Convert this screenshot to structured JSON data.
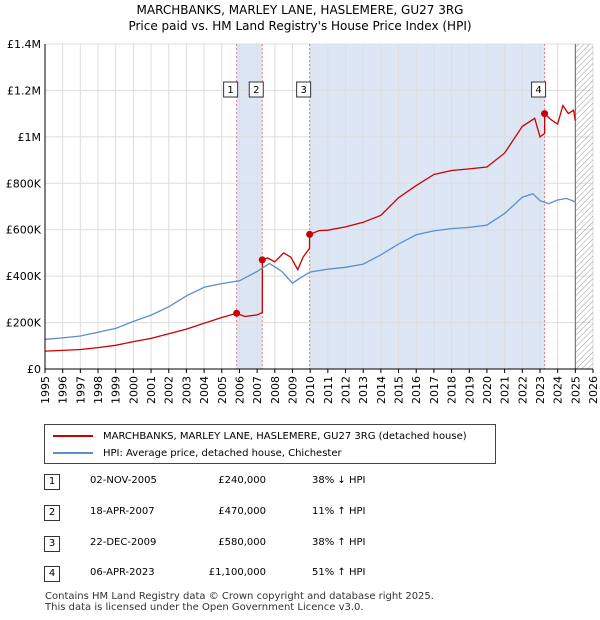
{
  "title_line1": "MARCHBANKS, MARLEY LANE, HASLEMERE, GU27 3RG",
  "title_line2": "Price paid vs. HM Land Registry's House Price Index (HPI)",
  "colors": {
    "property": "#cc0000",
    "hpi": "#5b8fcc",
    "shade": "#dde6f5",
    "marker_line": "#e08080",
    "grid": "#dddddd",
    "hatch": "#999999"
  },
  "chart_data": {
    "type": "line",
    "title": "Price paid vs. HM Land Registry's House Price Index (HPI)",
    "xlabel": "",
    "ylabel": "",
    "xlim": [
      1995,
      2026
    ],
    "ylim": [
      0,
      1400000
    ],
    "x_ticks": [
      "1995",
      "1996",
      "1997",
      "1998",
      "1999",
      "2000",
      "2001",
      "2002",
      "2003",
      "2004",
      "2005",
      "2006",
      "2007",
      "2008",
      "2009",
      "2010",
      "2011",
      "2012",
      "2013",
      "2014",
      "2015",
      "2016",
      "2017",
      "2018",
      "2019",
      "2020",
      "2021",
      "2022",
      "2023",
      "2024",
      "2025",
      "2026"
    ],
    "y_ticks": [
      {
        "value": 0,
        "label": "£0"
      },
      {
        "value": 200000,
        "label": "£200K"
      },
      {
        "value": 400000,
        "label": "£400K"
      },
      {
        "value": 600000,
        "label": "£600K"
      },
      {
        "value": 800000,
        "label": "£800K"
      },
      {
        "value": 1000000,
        "label": "£1M"
      },
      {
        "value": 1200000,
        "label": "£1.2M"
      },
      {
        "value": 1400000,
        "label": "£1.4M"
      }
    ],
    "hatched_from": 2025.0,
    "shaded_spans": [
      [
        2005.84,
        2007.3
      ],
      [
        2009.97,
        2023.27
      ]
    ],
    "series": [
      {
        "name": "MARCHBANKS, MARLEY LANE, HASLEMERE, GU27 3RG (detached house)",
        "x": [
          1995,
          1996,
          1997,
          1998,
          1999,
          2000,
          2001,
          2002,
          2003,
          2004,
          2005,
          2005.84,
          2006.3,
          2007.0,
          2007.29,
          2007.3,
          2007.6,
          2008.0,
          2008.5,
          2008.9,
          2009.3,
          2009.6,
          2009.96,
          2009.97,
          2010.5,
          2011,
          2012,
          2013,
          2014,
          2015,
          2016,
          2017,
          2018,
          2019,
          2020,
          2021,
          2022,
          2022.7,
          2023.0,
          2023.26,
          2023.27,
          2023.6,
          2024.0,
          2024.3,
          2024.6,
          2024.9,
          2025.0
        ],
        "values": [
          77000,
          80000,
          84000,
          92000,
          102000,
          118000,
          132000,
          152000,
          172000,
          197000,
          222000,
          240000,
          226000,
          233000,
          243000,
          470000,
          478000,
          462000,
          500000,
          482000,
          428000,
          482000,
          520000,
          580000,
          596000,
          598000,
          612000,
          632000,
          662000,
          738000,
          790000,
          838000,
          855000,
          862000,
          870000,
          930000,
          1045000,
          1080000,
          1000000,
          1015000,
          1100000,
          1075000,
          1055000,
          1135000,
          1100000,
          1115000,
          1070000
        ]
      },
      {
        "name": "HPI: Average price, detached house, Chichester",
        "x": [
          1995,
          1996,
          1997,
          1998,
          1999,
          2000,
          2001,
          2002,
          2003,
          2004,
          2005,
          2006,
          2007,
          2007.7,
          2008.4,
          2009.0,
          2009.5,
          2010.0,
          2011,
          2012,
          2013,
          2014,
          2015,
          2016,
          2017,
          2018,
          2019,
          2020,
          2021,
          2022,
          2022.6,
          2023.0,
          2023.5,
          2024.0,
          2024.5,
          2025.0
        ],
        "values": [
          128000,
          134000,
          142000,
          158000,
          175000,
          205000,
          232000,
          268000,
          315000,
          352000,
          368000,
          380000,
          420000,
          455000,
          420000,
          370000,
          395000,
          418000,
          430000,
          438000,
          452000,
          492000,
          538000,
          578000,
          595000,
          605000,
          610000,
          620000,
          670000,
          740000,
          755000,
          725000,
          712000,
          728000,
          735000,
          720000
        ]
      }
    ],
    "sale_points": [
      {
        "label": "1",
        "x": 2005.84,
        "value": 240000
      },
      {
        "label": "2",
        "x": 2007.29,
        "value": 470000
      },
      {
        "label": "3",
        "x": 2009.97,
        "value": 580000
      },
      {
        "label": "4",
        "x": 2023.26,
        "value": 1100000
      }
    ]
  },
  "legend": {
    "property": "MARCHBANKS, MARLEY LANE, HASLEMERE, GU27 3RG (detached house)",
    "hpi": "HPI: Average price, detached house, Chichester"
  },
  "transactions": [
    {
      "num": "1",
      "date": "02-NOV-2005",
      "price": "£240,000",
      "hpi": "38% ↓ HPI"
    },
    {
      "num": "2",
      "date": "18-APR-2007",
      "price": "£470,000",
      "hpi": "11% ↑ HPI"
    },
    {
      "num": "3",
      "date": "22-DEC-2009",
      "price": "£580,000",
      "hpi": "38% ↑ HPI"
    },
    {
      "num": "4",
      "date": "06-APR-2023",
      "price": "£1,100,000",
      "hpi": "51% ↑ HPI"
    }
  ],
  "footer": {
    "line1": "Contains HM Land Registry data © Crown copyright and database right 2025.",
    "line2": "This data is licensed under the Open Government Licence v3.0."
  }
}
